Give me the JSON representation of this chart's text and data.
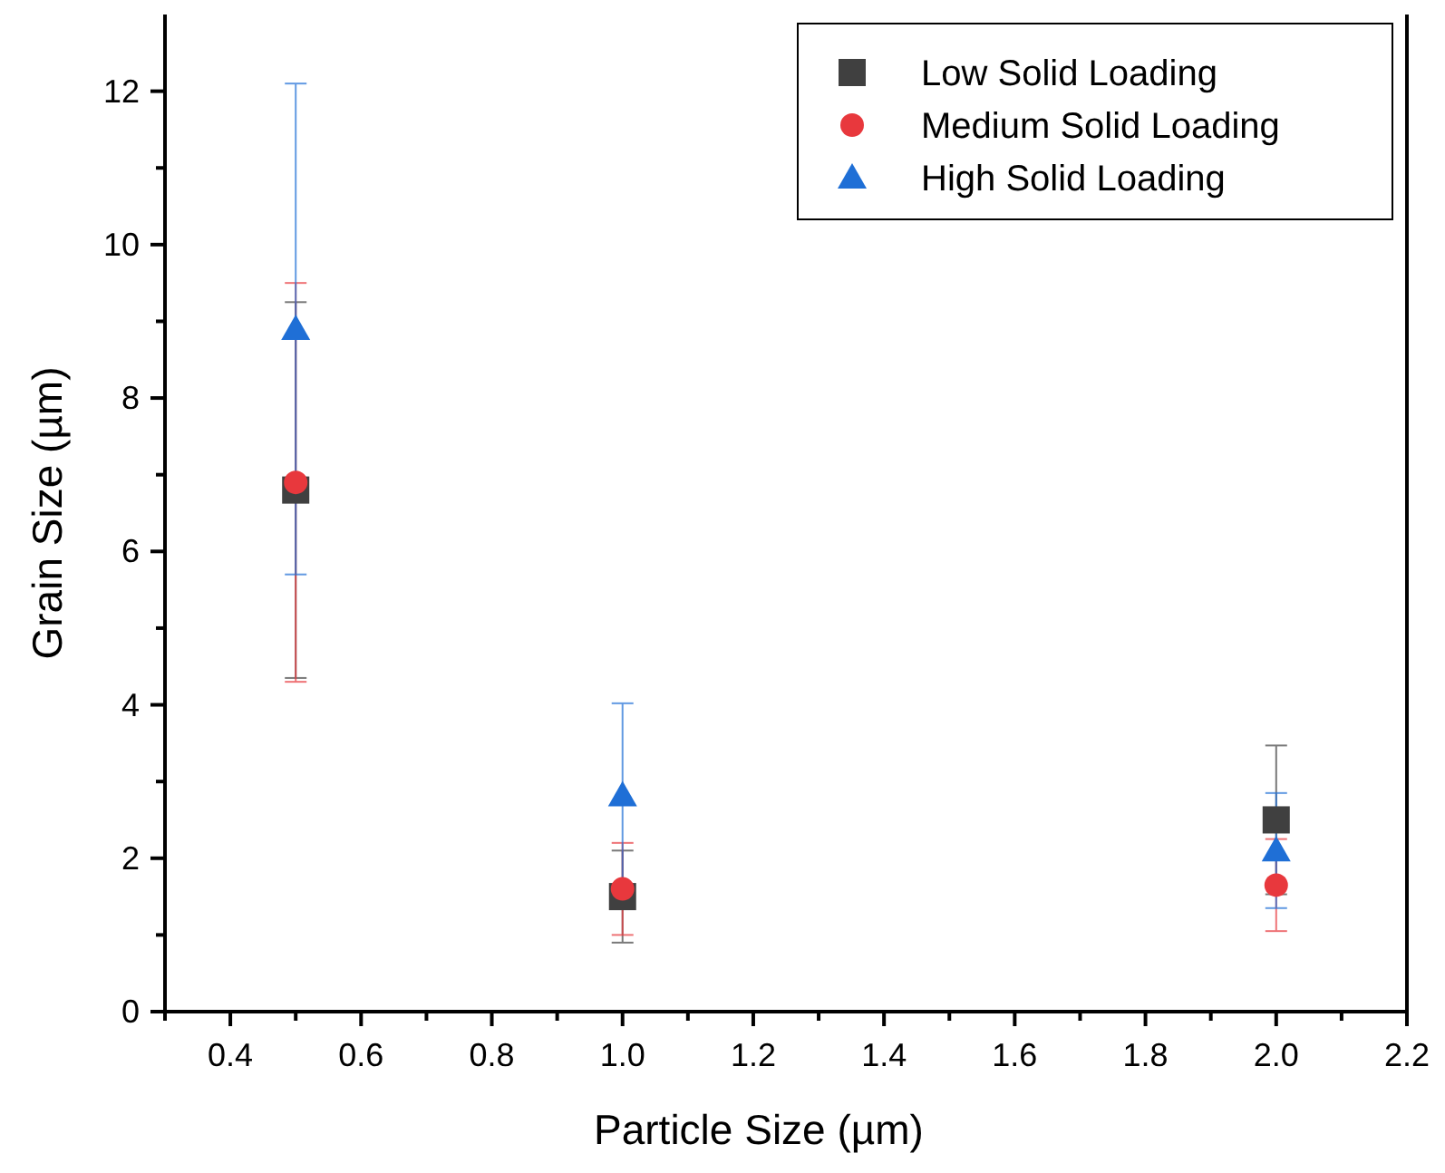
{
  "chart_data": {
    "type": "scatter",
    "xlabel": "Particle Size (µm)",
    "ylabel": "Grain Size (µm)",
    "x": [
      0.5,
      1.0,
      2.0
    ],
    "series": [
      {
        "name": "Low Solid Loading",
        "color": "#404040",
        "marker": "square",
        "values": [
          6.8,
          1.5,
          2.5
        ],
        "errors": [
          2.45,
          0.6,
          0.97
        ]
      },
      {
        "name": "Medium Solid Loading",
        "color": "#e8383d",
        "marker": "circle",
        "values": [
          6.9,
          1.6,
          1.65
        ],
        "errors": [
          2.6,
          0.6,
          0.6
        ]
      },
      {
        "name": "High Solid Loading",
        "color": "#1f6fd6",
        "marker": "triangle",
        "values": [
          8.9,
          2.82,
          2.1
        ],
        "errors": [
          3.2,
          1.2,
          0.75
        ]
      }
    ],
    "xlim": [
      0.3,
      2.2
    ],
    "xticks": [
      {
        "value": 0.3,
        "label": null
      },
      0.4,
      {
        "value": 0.5,
        "label": null
      },
      0.6,
      {
        "value": 0.7,
        "label": null
      },
      0.8,
      {
        "value": 0.9,
        "label": null
      },
      {
        "value": 1.0,
        "label": "1.0"
      },
      {
        "value": 1.1,
        "label": null
      },
      1.2,
      {
        "value": 1.3,
        "label": null
      },
      1.4,
      {
        "value": 1.5,
        "label": null
      },
      1.6,
      {
        "value": 1.7,
        "label": null
      },
      1.8,
      {
        "value": 1.9,
        "label": null
      },
      {
        "value": 2.0,
        "label": "2.0"
      },
      {
        "value": 2.1,
        "label": null
      },
      2.2
    ],
    "ylim": [
      0,
      13
    ],
    "yticks": [
      0,
      {
        "value": 1,
        "label": null
      },
      2,
      {
        "value": 3,
        "label": null
      },
      4,
      {
        "value": 5,
        "label": null
      },
      6,
      {
        "value": 7,
        "label": null
      },
      8,
      {
        "value": 9,
        "label": null
      },
      10,
      {
        "value": 11,
        "label": null
      },
      12
    ],
    "grid": false,
    "legend": "top right"
  }
}
